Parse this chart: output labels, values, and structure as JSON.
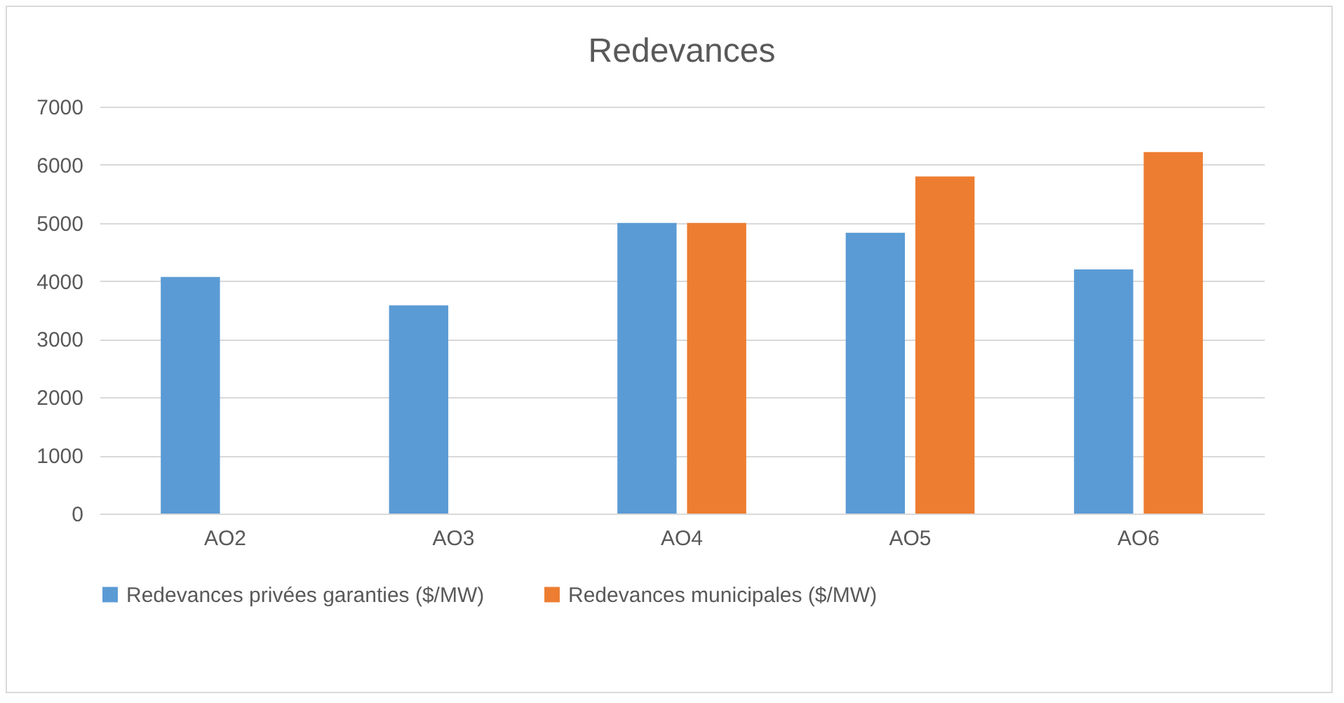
{
  "chart_data": {
    "type": "bar",
    "title": "Redevances",
    "categories": [
      "AO2",
      "AO3",
      "AO4",
      "AO5",
      "AO6"
    ],
    "series": [
      {
        "name": "Redevances privées garanties ($/MW)",
        "color": "#5b9bd5",
        "values": [
          4070,
          3580,
          5000,
          4830,
          4200
        ]
      },
      {
        "name": "Redevances municipales ($/MW)",
        "color": "#ed7d31",
        "values": [
          null,
          null,
          5000,
          5800,
          6220
        ]
      }
    ],
    "ylim": [
      0,
      7000
    ],
    "yticks": [
      0,
      1000,
      2000,
      3000,
      4000,
      5000,
      6000,
      7000
    ],
    "grid": "y",
    "legend": "bottom"
  }
}
